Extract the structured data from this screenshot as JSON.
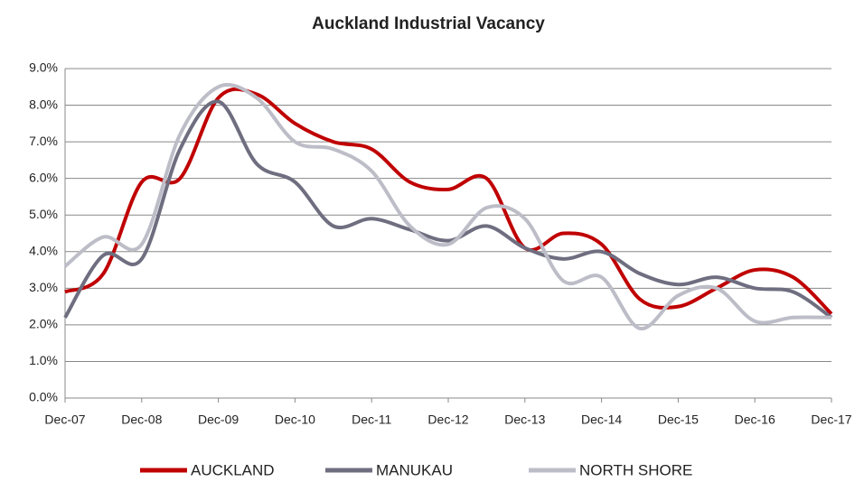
{
  "chart_data": {
    "type": "line",
    "title": "Auckland Industrial Vacancy",
    "categories": [
      "Dec-07",
      null,
      "Dec-08",
      null,
      "Dec-09",
      null,
      "Dec-10",
      null,
      "Dec-11",
      null,
      "Dec-12",
      null,
      "Dec-13",
      null,
      "Dec-14",
      null,
      "Dec-15",
      null,
      "Dec-16",
      null,
      "Dec-17"
    ],
    "series": [
      {
        "name": "AUCKLAND",
        "color": "#c00000",
        "values": [
          2.9,
          3.4,
          5.9,
          6.0,
          8.2,
          8.3,
          7.5,
          7.0,
          6.8,
          5.9,
          5.7,
          6.0,
          4.1,
          4.5,
          4.2,
          2.7,
          2.5,
          3.0,
          3.5,
          3.3,
          2.3
        ]
      },
      {
        "name": "MANUKAU",
        "color": "#6f6e80",
        "values": [
          2.2,
          3.9,
          3.8,
          6.8,
          8.1,
          6.4,
          5.9,
          4.7,
          4.9,
          4.6,
          4.3,
          4.7,
          4.1,
          3.8,
          4.0,
          3.4,
          3.1,
          3.3,
          3.0,
          2.9,
          2.2
        ]
      },
      {
        "name": "NORTH SHORE",
        "color": "#bdbdc8",
        "values": [
          3.6,
          4.4,
          4.2,
          7.2,
          8.5,
          8.2,
          7.0,
          6.8,
          6.2,
          4.7,
          4.2,
          5.2,
          4.9,
          3.2,
          3.3,
          1.9,
          2.8,
          3.0,
          2.1,
          2.2,
          2.2
        ]
      }
    ],
    "ylim": [
      0,
      9
    ],
    "yticks": [
      {
        "value": 0,
        "label": "0.0%"
      },
      {
        "value": 1,
        "label": "1.0%"
      },
      {
        "value": 2,
        "label": "2.0%"
      },
      {
        "value": 3,
        "label": "3.0%"
      },
      {
        "value": 4,
        "label": "4.0%"
      },
      {
        "value": 5,
        "label": "5.0%"
      },
      {
        "value": 6,
        "label": "6.0%"
      },
      {
        "value": 7,
        "label": "7.0%"
      },
      {
        "value": 8,
        "label": "8.0%"
      },
      {
        "value": 9,
        "label": "9.0%"
      }
    ],
    "grid": true,
    "legend": "bottom"
  }
}
